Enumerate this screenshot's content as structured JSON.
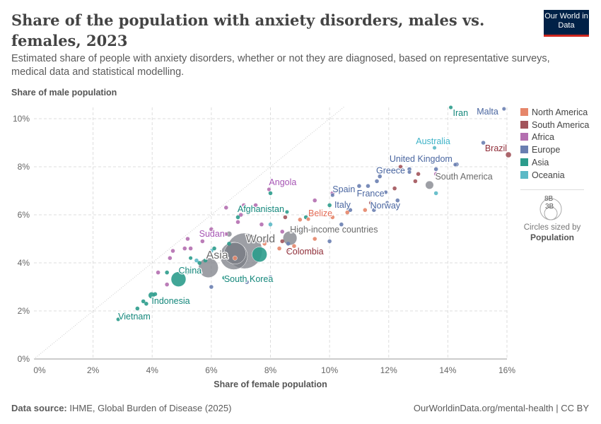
{
  "header": {
    "title": "Share of the population with anxiety disorders, males vs. females, 2023",
    "subtitle": "Estimated share of people with anxiety disorders, whether or not they are diagnosed, based on representative surveys, medical data and statistical modelling.",
    "logo": "Our World in Data"
  },
  "footer": {
    "source_label": "Data source:",
    "source": "IHME, Global Burden of Disease (2025)",
    "link": "OurWorldinData.org/mental-health | CC BY"
  },
  "chart_data": {
    "type": "scatter",
    "title": "Share of the population with anxiety disorders, males vs. females, 2023",
    "xlabel": "Share of female population",
    "ylabel": "Share of male population",
    "xlim": [
      0,
      16
    ],
    "ylim": [
      0,
      10.5
    ],
    "xticks": [
      "0%",
      "2%",
      "4%",
      "6%",
      "8%",
      "10%",
      "12%",
      "14%",
      "16%"
    ],
    "yticks": [
      "0%",
      "2%",
      "4%",
      "6%",
      "8%",
      "10%"
    ],
    "grid": true,
    "reference_line": "y = x",
    "legend_placement": "right",
    "colors": {
      "North America": "#e6866a",
      "South America": "#a2545b",
      "Africa": "#b46fb0",
      "Europe": "#6a7fb1",
      "Asia": "#2c9c8c",
      "Oceania": "#5bb9c6",
      "Aggregate": "#7c7f87"
    },
    "label_colors": {
      "North America": "#e36b55",
      "South America": "#8f2d38",
      "Africa": "#a655b4",
      "Europe": "#4a66a0",
      "Asia": "#14877b",
      "Oceania": "#3fb3c8",
      "Aggregate": "#6b6b6b"
    },
    "legend": [
      "North America",
      "South America",
      "Africa",
      "Europe",
      "Asia",
      "Oceania"
    ],
    "size_legend": {
      "values": [
        "8B",
        "3B"
      ],
      "caption": "Circles sized by",
      "variable": "Population"
    },
    "labeled_points": [
      {
        "name": "Iran",
        "x": 14.1,
        "y": 10.47,
        "region": "Asia",
        "pop": 90
      },
      {
        "name": "Malta",
        "x": 15.9,
        "y": 10.41,
        "region": "Europe",
        "pop": 1
      },
      {
        "name": "Australia",
        "x": 13.55,
        "y": 8.79,
        "region": "Oceania",
        "pop": 27
      },
      {
        "name": "Brazil",
        "x": 16.05,
        "y": 8.5,
        "region": "South America",
        "pop": 211
      },
      {
        "name": "United Kingdom",
        "x": 14.25,
        "y": 8.09,
        "region": "Europe",
        "pop": 69
      },
      {
        "name": "Greece",
        "x": 12.7,
        "y": 7.78,
        "region": "Europe",
        "pop": 10
      },
      {
        "name": "South America",
        "x": 13.38,
        "y": 7.24,
        "region": "Aggregate",
        "pop": 430
      },
      {
        "name": "France",
        "x": 11.9,
        "y": 6.94,
        "region": "Europe",
        "pop": 66
      },
      {
        "name": "Norway",
        "x": 11.95,
        "y": 6.5,
        "region": "Europe",
        "pop": 5
      },
      {
        "name": "Spain",
        "x": 10.1,
        "y": 6.82,
        "region": "Europe",
        "pop": 48
      },
      {
        "name": "Italy",
        "x": 10.45,
        "y": 6.35,
        "region": "Europe",
        "pop": 59
      },
      {
        "name": "Angola",
        "x": 7.95,
        "y": 7.06,
        "region": "Africa",
        "pop": 37
      },
      {
        "name": "Afghanistan",
        "x": 8.56,
        "y": 6.12,
        "region": "Asia",
        "pop": 42
      },
      {
        "name": "Belize",
        "x": 9.28,
        "y": 5.82,
        "region": "North America",
        "pop": 1
      },
      {
        "name": "High-income countries",
        "x": 8.66,
        "y": 5.03,
        "region": "Aggregate",
        "pop": 1250
      },
      {
        "name": "World",
        "x": 7.12,
        "y": 4.5,
        "region": "Aggregate",
        "pop": 8100
      },
      {
        "name": "Colombia",
        "x": 8.58,
        "y": 4.53,
        "region": "South America",
        "pop": 52
      },
      {
        "name": "Sudan",
        "x": 6.5,
        "y": 5.2,
        "region": "Africa",
        "pop": 50
      },
      {
        "name": "Asia",
        "x": 6.76,
        "y": 4.29,
        "region": "Aggregate",
        "pop": 4800
      },
      {
        "name": "China",
        "x": 4.89,
        "y": 3.32,
        "region": "Asia",
        "pop": 1410
      },
      {
        "name": "South Korea",
        "x": 6.43,
        "y": 3.38,
        "region": "Asia",
        "pop": 52
      },
      {
        "name": "Indonesia",
        "x": 3.98,
        "y": 2.65,
        "region": "Asia",
        "pop": 280
      },
      {
        "name": "Vietnam",
        "x": 2.85,
        "y": 1.65,
        "region": "Asia",
        "pop": 100
      }
    ],
    "points": [
      {
        "x": 7.63,
        "y": 4.35,
        "region": "Asia",
        "pop": 1440
      },
      {
        "x": 5.9,
        "y": 3.8,
        "region": "Aggregate",
        "pop": 2500
      },
      {
        "x": 6.8,
        "y": 4.4,
        "region": "Aggregate",
        "pop": 3000
      },
      {
        "x": 6.6,
        "y": 5.2,
        "region": "Aggregate",
        "pop": 200
      },
      {
        "x": 7.0,
        "y": 6.0,
        "region": "Africa"
      },
      {
        "x": 6.5,
        "y": 6.3,
        "region": "Africa"
      },
      {
        "x": 7.5,
        "y": 6.4,
        "region": "Africa"
      },
      {
        "x": 7.1,
        "y": 6.4,
        "region": "Africa"
      },
      {
        "x": 6.0,
        "y": 5.4,
        "region": "Africa"
      },
      {
        "x": 5.3,
        "y": 4.6,
        "region": "Africa"
      },
      {
        "x": 5.1,
        "y": 4.6,
        "region": "Africa"
      },
      {
        "x": 4.7,
        "y": 4.5,
        "region": "Africa"
      },
      {
        "x": 4.6,
        "y": 4.2,
        "region": "Africa"
      },
      {
        "x": 5.7,
        "y": 4.9,
        "region": "Africa"
      },
      {
        "x": 4.2,
        "y": 3.6,
        "region": "Africa"
      },
      {
        "x": 4.5,
        "y": 3.1,
        "region": "Africa"
      },
      {
        "x": 5.8,
        "y": 5.2,
        "region": "Africa"
      },
      {
        "x": 5.2,
        "y": 5.0,
        "region": "Africa"
      },
      {
        "x": 6.9,
        "y": 5.7,
        "region": "Africa"
      },
      {
        "x": 9.5,
        "y": 6.6,
        "region": "Africa"
      },
      {
        "x": 10.1,
        "y": 6.9,
        "region": "Africa"
      },
      {
        "x": 13.6,
        "y": 7.7,
        "region": "Africa"
      },
      {
        "x": 7.7,
        "y": 5.6,
        "region": "Africa"
      },
      {
        "x": 8.4,
        "y": 5.3,
        "region": "Africa"
      },
      {
        "x": 8.0,
        "y": 6.9,
        "region": "Asia"
      },
      {
        "x": 6.9,
        "y": 5.9,
        "region": "Asia"
      },
      {
        "x": 4.5,
        "y": 3.6,
        "region": "Asia"
      },
      {
        "x": 3.7,
        "y": 2.4,
        "region": "Asia"
      },
      {
        "x": 3.8,
        "y": 2.3,
        "region": "Asia"
      },
      {
        "x": 3.5,
        "y": 2.1,
        "region": "Asia"
      },
      {
        "x": 5.2,
        "y": 3.6,
        "region": "Asia"
      },
      {
        "x": 5.8,
        "y": 4.1,
        "region": "Asia"
      },
      {
        "x": 6.1,
        "y": 4.6,
        "region": "Asia"
      },
      {
        "x": 6.6,
        "y": 4.8,
        "region": "Asia"
      },
      {
        "x": 9.2,
        "y": 5.9,
        "region": "Asia"
      },
      {
        "x": 10.0,
        "y": 6.4,
        "region": "Asia"
      },
      {
        "x": 4.1,
        "y": 2.7,
        "region": "Asia"
      },
      {
        "x": 5.6,
        "y": 4.0,
        "region": "Asia"
      },
      {
        "x": 5.3,
        "y": 4.2,
        "region": "Asia",
        "pop": 90
      },
      {
        "x": 11.6,
        "y": 7.4,
        "region": "Europe"
      },
      {
        "x": 11.7,
        "y": 7.6,
        "region": "Europe"
      },
      {
        "x": 12.7,
        "y": 7.9,
        "region": "Europe"
      },
      {
        "x": 13.6,
        "y": 7.9,
        "region": "Europe"
      },
      {
        "x": 11.0,
        "y": 7.2,
        "region": "Europe"
      },
      {
        "x": 11.3,
        "y": 7.2,
        "region": "Europe"
      },
      {
        "x": 10.7,
        "y": 6.2,
        "region": "Europe"
      },
      {
        "x": 9.6,
        "y": 6.0,
        "region": "Europe"
      },
      {
        "x": 9.0,
        "y": 5.3,
        "region": "Europe"
      },
      {
        "x": 10.4,
        "y": 5.6,
        "region": "Europe"
      },
      {
        "x": 10.0,
        "y": 4.9,
        "region": "Europe"
      },
      {
        "x": 7.2,
        "y": 3.2,
        "region": "Europe"
      },
      {
        "x": 8.0,
        "y": 3.4,
        "region": "Europe"
      },
      {
        "x": 6.0,
        "y": 3.0,
        "region": "Europe"
      },
      {
        "x": 8.6,
        "y": 4.8,
        "region": "Europe"
      },
      {
        "x": 12.3,
        "y": 6.6,
        "region": "Europe"
      },
      {
        "x": 11.5,
        "y": 6.2,
        "region": "Europe"
      },
      {
        "x": 15.2,
        "y": 9.0,
        "region": "Europe"
      },
      {
        "x": 14.3,
        "y": 8.1,
        "region": "Europe"
      },
      {
        "x": 8.3,
        "y": 4.6,
        "region": "North America"
      },
      {
        "x": 8.8,
        "y": 4.7,
        "region": "North America"
      },
      {
        "x": 10.1,
        "y": 5.9,
        "region": "North America"
      },
      {
        "x": 10.6,
        "y": 6.1,
        "region": "North America"
      },
      {
        "x": 11.2,
        "y": 6.2,
        "region": "North America"
      },
      {
        "x": 9.0,
        "y": 5.8,
        "region": "North America"
      },
      {
        "x": 9.5,
        "y": 5.0,
        "region": "North America"
      },
      {
        "x": 7.8,
        "y": 4.8,
        "region": "North America"
      },
      {
        "x": 6.8,
        "y": 4.2,
        "region": "North America",
        "pop": 130
      },
      {
        "x": 12.4,
        "y": 8.0,
        "region": "South America"
      },
      {
        "x": 13.0,
        "y": 7.7,
        "region": "South America"
      },
      {
        "x": 12.9,
        "y": 7.4,
        "region": "South America"
      },
      {
        "x": 12.2,
        "y": 7.1,
        "region": "South America"
      },
      {
        "x": 11.4,
        "y": 6.5,
        "region": "South America"
      },
      {
        "x": 8.5,
        "y": 5.9,
        "region": "South America"
      },
      {
        "x": 9.4,
        "y": 6.0,
        "region": "South America"
      },
      {
        "x": 8.4,
        "y": 4.9,
        "region": "South America"
      },
      {
        "x": 7.9,
        "y": 4.9,
        "region": "South America"
      },
      {
        "x": 13.6,
        "y": 6.9,
        "region": "Oceania"
      },
      {
        "x": 8.0,
        "y": 5.6,
        "region": "Oceania"
      },
      {
        "x": 6.0,
        "y": 4.5,
        "region": "Oceania"
      },
      {
        "x": 5.5,
        "y": 4.1,
        "region": "Oceania"
      }
    ]
  }
}
